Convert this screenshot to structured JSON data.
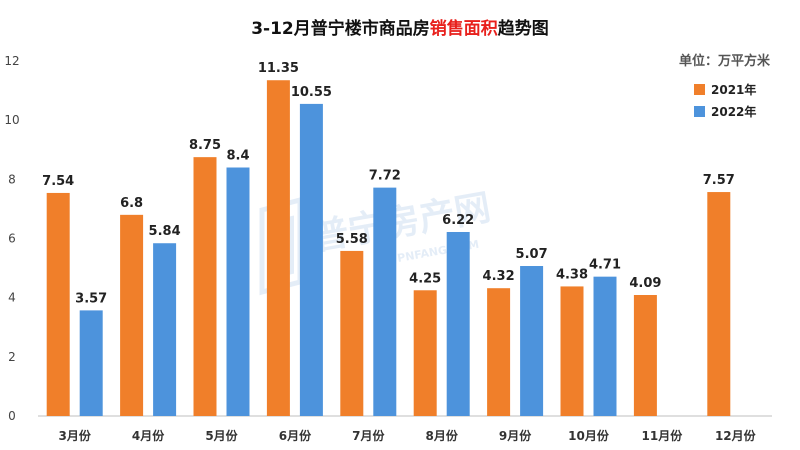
{
  "title": {
    "prefix": "3-12月普宁楼市商品房",
    "highlight": "销售面积",
    "suffix": "趋势图"
  },
  "unit": "单位：万平方米",
  "colors": {
    "series_2021": "#f07f2a",
    "series_2022": "#4d93dc",
    "title_highlight": "#e8201c"
  },
  "watermark": {
    "text_cn": "普宁房产网",
    "text_en": "PNFANG.COM",
    "icon": "pn-logo-icon"
  },
  "chart_data": {
    "type": "bar",
    "title": "3-12月普宁楼市商品房销售面积趋势图",
    "categories": [
      "3月份",
      "4月份",
      "5月份",
      "6月份",
      "7月份",
      "8月份",
      "9月份",
      "10月份",
      "11月份",
      "12月份"
    ],
    "series": [
      {
        "name": "2021年",
        "values": [
          7.54,
          6.8,
          8.75,
          11.35,
          5.58,
          4.25,
          4.32,
          4.38,
          4.09,
          7.57
        ],
        "labels": [
          "7.54",
          "6.8",
          "8.75",
          "11.35",
          "5.58",
          "4.25",
          "4.32",
          "4.38",
          "4.09",
          "7.57"
        ]
      },
      {
        "name": "2022年",
        "values": [
          3.57,
          5.84,
          8.4,
          10.55,
          7.72,
          6.22,
          5.07,
          4.71,
          null,
          null
        ],
        "labels": [
          "3.57",
          "5.84",
          "8.4",
          "10.55",
          "7.72",
          "6.22",
          "5.07",
          "4.71",
          "",
          ""
        ]
      }
    ],
    "y_ticks": [
      "0",
      "2",
      "4",
      "6",
      "8",
      "10",
      "12"
    ],
    "ylim": [
      0,
      12
    ],
    "xlabel": "",
    "ylabel": "",
    "grid": false,
    "legend_position": "top-right"
  }
}
